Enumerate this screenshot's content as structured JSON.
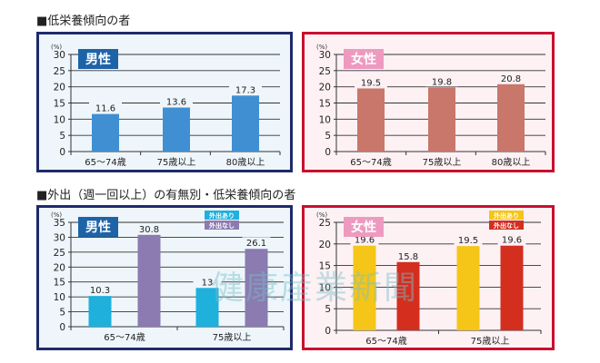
{
  "titles": {
    "section1": "■低栄養傾向の者",
    "section2": "■外出（週一回以上）の有無別・低栄養傾向の者"
  },
  "watermark": "健康産業新聞",
  "colors": {
    "male_border": "#1f2a6b",
    "male_bg": "#eef6fb",
    "male_badge": "#1d63a8",
    "female_border": "#c8102e",
    "female_bg": "#fdf1f4",
    "female_badge": "#ee9ac0",
    "male_bar": "#3f8fd2",
    "female_bar": "#c8776a",
    "out_yes_male": "#1fb0dc",
    "out_no_male": "#8b7bb0",
    "out_yes_female": "#f5c518",
    "out_no_female": "#d42e1f"
  },
  "chart_data": [
    {
      "type": "bar",
      "badge": "男性",
      "unit": "(%)",
      "ylim": [
        0,
        30
      ],
      "yticks": [
        0,
        5,
        10,
        15,
        20,
        25,
        30
      ],
      "categories": [
        "65〜74歳",
        "75歳以上",
        "80歳以上"
      ],
      "series": [
        {
          "values": [
            11.6,
            13.6,
            17.3
          ],
          "color": "#3f8fd2"
        }
      ],
      "grid": true
    },
    {
      "type": "bar",
      "badge": "女性",
      "unit": "(%)",
      "ylim": [
        0,
        30
      ],
      "yticks": [
        0,
        5,
        10,
        15,
        20,
        25,
        30
      ],
      "categories": [
        "65〜74歳",
        "75歳以上",
        "80歳以上"
      ],
      "series": [
        {
          "values": [
            19.5,
            19.8,
            20.8
          ],
          "color": "#c8776a"
        }
      ],
      "grid": true
    },
    {
      "type": "bar",
      "badge": "男性",
      "unit": "(%)",
      "ylim": [
        0,
        35
      ],
      "yticks": [
        0,
        5,
        10,
        15,
        20,
        25,
        30,
        35
      ],
      "categories": [
        "65〜74歳",
        "75歳以上"
      ],
      "legend": "top-right",
      "series": [
        {
          "name": "外出あり",
          "values": [
            10.3,
            13.0
          ],
          "color": "#1fb0dc"
        },
        {
          "name": "外出なし",
          "values": [
            30.8,
            26.1
          ],
          "color": "#8b7bb0"
        }
      ],
      "grid": true
    },
    {
      "type": "bar",
      "badge": "女性",
      "unit": "(%)",
      "ylim": [
        0,
        25
      ],
      "yticks": [
        0,
        5,
        10,
        15,
        20,
        25
      ],
      "categories": [
        "65〜74歳",
        "75歳以上"
      ],
      "legend": "top-right",
      "series": [
        {
          "name": "外出あり",
          "values": [
            19.6,
            19.5
          ],
          "color": "#f5c518"
        },
        {
          "name": "外出なし",
          "values": [
            15.8,
            19.6
          ],
          "color": "#d42e1f"
        }
      ],
      "grid": true
    }
  ]
}
